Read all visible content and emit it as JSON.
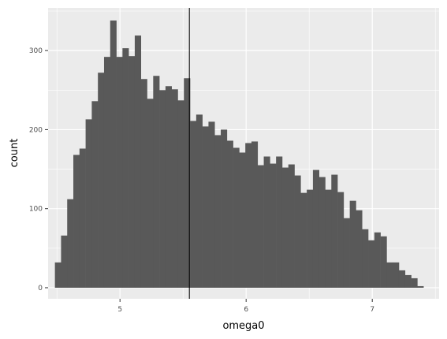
{
  "chart_data": {
    "type": "bar",
    "subtype": "histogram",
    "xlabel": "omega0",
    "ylabel": "count",
    "xlim": [
      4.43,
      7.53
    ],
    "ylim": [
      -14,
      354
    ],
    "x_ticks": [
      5,
      6,
      7
    ],
    "x_tick_labels": [
      "5",
      "6",
      "7"
    ],
    "y_ticks": [
      0,
      100,
      200,
      300
    ],
    "y_tick_labels": [
      "0",
      "100",
      "200",
      "300"
    ],
    "bin_width": 0.0487,
    "bin_start": 4.484,
    "counts": [
      32,
      66,
      112,
      168,
      176,
      213,
      236,
      272,
      292,
      338,
      292,
      303,
      293,
      319,
      264,
      239,
      268,
      250,
      255,
      251,
      237,
      265,
      211,
      219,
      204,
      210,
      193,
      200,
      186,
      177,
      171,
      183,
      185,
      155,
      166,
      157,
      166,
      152,
      156,
      142,
      120,
      124,
      149,
      140,
      124,
      143,
      121,
      88,
      110,
      98,
      74,
      60,
      70,
      65,
      32,
      32,
      22,
      16,
      12,
      2
    ],
    "vline_x": 5.55,
    "grid": true,
    "legend": "none",
    "colors": {
      "bar": "#595959",
      "panel": "#ebebeb",
      "grid": "#ffffff",
      "vline": "#000000"
    }
  }
}
